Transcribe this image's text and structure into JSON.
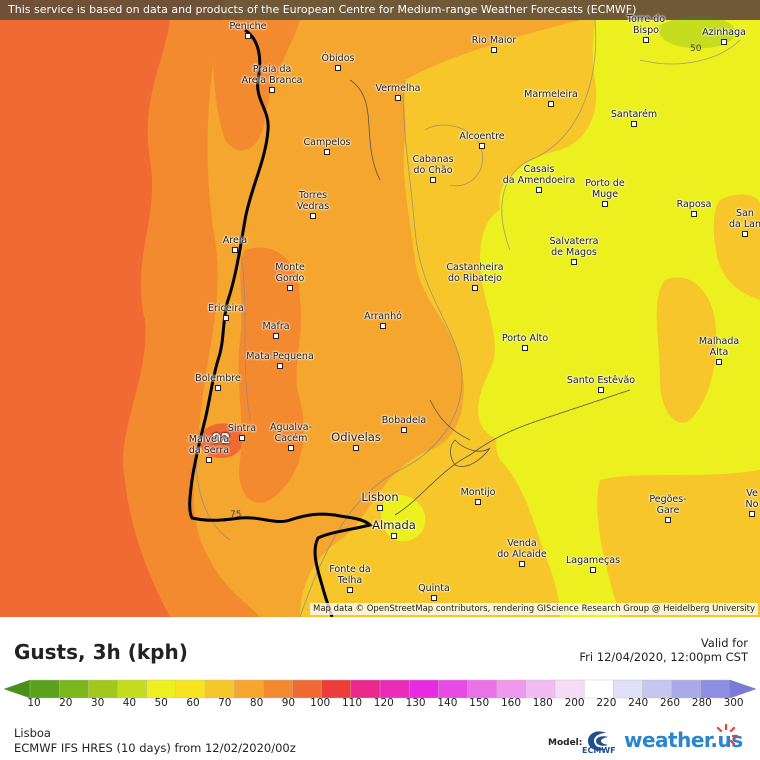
{
  "header": {
    "notice": "This service is based on data and products of the European Centre for Medium-range Weather Forecasts (ECMWF)"
  },
  "attribution": "Map data © OpenStreetMap contributors, rendering GIScience Research Group @ Heidelberg University",
  "map": {
    "max_marker": "92",
    "contour_labels": [
      "50",
      "75"
    ],
    "cities": [
      "Peniche",
      "Óbidos",
      "Rio Maior",
      "Torre do\nBispo",
      "Azinhaga",
      "Praia da\nAreia Branca",
      "Vermelha",
      "Marmeleira",
      "Santarém",
      "Campelos",
      "Alcoentre",
      "Cabanas\ndo Chão",
      "Casais\nda Amendoeira",
      "Porto de\nMuge",
      "Torres\nVedras",
      "Raposa",
      "San\nda Lan",
      "Areia",
      "Salvaterra\nde Magos",
      "Monte\nGordo",
      "Castanheira\ndo Ribatejo",
      "Ericeira",
      "Arranhó",
      "Mafra",
      "Porto Alto",
      "Malhada\nAlta",
      "Mata Pequena",
      "Bolembre",
      "Santo Estêvão",
      "Sintra",
      "Bobadela",
      "Malveira\nda Serra",
      "Agualva-\nCacém",
      "Odivelas",
      "Montijo",
      "Lisbon",
      "Pegões-\nGare",
      "Ve\nNo",
      "Almada",
      "Venda\ndo Alcaide",
      "Lagameças",
      "Fonte da\nTelha",
      "Quinta"
    ]
  },
  "legend": {
    "title": "Gusts, 3h (kph)",
    "valid_label": "Valid for",
    "valid_time": "Fri 12/04/2020, 12:00pm CST",
    "ticks": [
      "10",
      "20",
      "30",
      "40",
      "50",
      "60",
      "70",
      "80",
      "90",
      "100",
      "110",
      "120",
      "130",
      "140",
      "150",
      "160",
      "180",
      "200",
      "220",
      "240",
      "260",
      "280",
      "300"
    ],
    "colors": [
      "#5aa21e",
      "#7cb61e",
      "#a2c81e",
      "#c6dc1e",
      "#ecf01e",
      "#f8e41e",
      "#f6c62a",
      "#f4a62e",
      "#f48a30",
      "#f06a34",
      "#ec3c3c",
      "#ea2a8a",
      "#ea2ab8",
      "#e82ae0",
      "#e84ae6",
      "#ea72e8",
      "#ee98ee",
      "#f2bcf2",
      "#f6dcf6",
      "#ffffff",
      "#e0e0f6",
      "#c6c6f0",
      "#aaaaea",
      "#8e8ee4"
    ],
    "location": "Lisboa",
    "model": "ECMWF IFS HRES (10 days) from 12/02/2020/00z",
    "model_label": "Model:",
    "ecmwf_logo": "ECMWF",
    "brand": "weather.us"
  }
}
